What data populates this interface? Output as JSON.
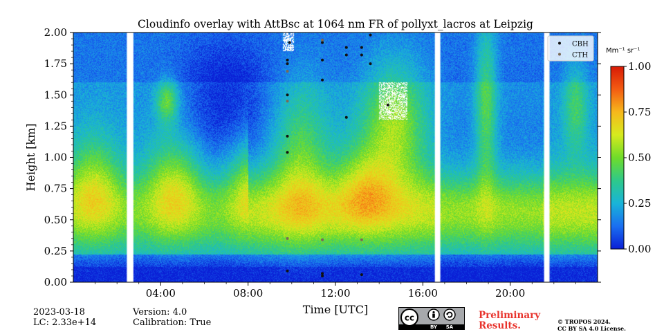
{
  "chart_data": {
    "type": "heatmap",
    "title": "Cloudinfo overlay with AttBsc at 1064 nm FR of pollyxt_lacros at Leipzig",
    "xlabel": "Time [UTC]",
    "ylabel": "Height [km]",
    "xlim": [
      0,
      24
    ],
    "ylim": [
      0.0,
      2.0
    ],
    "x_ticks": [
      "04:00",
      "08:00",
      "12:00",
      "16:00",
      "20:00"
    ],
    "x_tick_values": [
      4,
      8,
      12,
      16,
      20
    ],
    "y_ticks": [
      "0.00",
      "0.25",
      "0.50",
      "0.75",
      "1.00",
      "1.25",
      "1.50",
      "1.75",
      "2.00"
    ],
    "y_tick_values": [
      0.0,
      0.25,
      0.5,
      0.75,
      1.0,
      1.25,
      1.5,
      1.75,
      2.0
    ],
    "colorbar": {
      "label": "Mm⁻¹ sr⁻¹",
      "ticks": [
        "0.00",
        "0.25",
        "0.50",
        "0.75",
        "1.00"
      ],
      "tick_values": [
        0.0,
        0.25,
        0.5,
        0.75,
        1.0
      ],
      "range": [
        0.0,
        1.0
      ],
      "colormap": [
        "#0a1fd6",
        "#1a6ff0",
        "#19b4d8",
        "#2ec98a",
        "#6fdc2a",
        "#d7ea1e",
        "#f6b81c",
        "#f35c12",
        "#d81a06"
      ]
    },
    "data_gaps_utc": [
      [
        2.45,
        2.75
      ],
      [
        16.55,
        16.8
      ],
      [
        21.55,
        21.8
      ]
    ],
    "legend": {
      "placement": "top-right",
      "entries": [
        "CBH",
        "CTH"
      ]
    },
    "series": [
      {
        "name": "CBH",
        "marker": "dot",
        "color": "#111111",
        "points": [
          [
            9.8,
            1.78
          ],
          [
            9.8,
            1.75
          ],
          [
            9.8,
            1.5
          ],
          [
            9.8,
            1.17
          ],
          [
            9.8,
            1.04
          ],
          [
            9.8,
            0.09
          ],
          [
            11.4,
            1.92
          ],
          [
            11.4,
            1.78
          ],
          [
            11.4,
            1.62
          ],
          [
            11.4,
            0.07
          ],
          [
            11.4,
            0.05
          ],
          [
            12.5,
            1.88
          ],
          [
            12.5,
            1.82
          ],
          [
            12.5,
            1.32
          ],
          [
            13.2,
            1.88
          ],
          [
            13.2,
            1.82
          ],
          [
            13.2,
            0.06
          ],
          [
            13.6,
            1.98
          ],
          [
            13.6,
            1.75
          ],
          [
            14.4,
            1.42
          ],
          [
            9.9,
            1.92
          ]
        ]
      },
      {
        "name": "CTH",
        "marker": "dot",
        "color": "#7a6a55",
        "points": [
          [
            9.8,
            1.69
          ],
          [
            9.8,
            1.45
          ],
          [
            9.8,
            0.35
          ],
          [
            11.4,
            0.34
          ],
          [
            13.2,
            0.34
          ],
          [
            11.4,
            1.94
          ]
        ]
      }
    ]
  },
  "footer": {
    "date": "2023-03-18",
    "lc": "LC: 2.33e+14",
    "version": "Version: 4.0",
    "calibration": "Calibration: True",
    "preliminary_line1": "Preliminary",
    "preliminary_line2": "Results.",
    "copyright_line1": "© TROPOS 2024.",
    "copyright_line2": "CC BY SA 4.0 License.",
    "license_badge": {
      "main": "cc",
      "by": "BY",
      "sa": "SA"
    }
  },
  "colors": {
    "accent_red": "#e8332c",
    "badge_gray": "#a7a9ac"
  }
}
